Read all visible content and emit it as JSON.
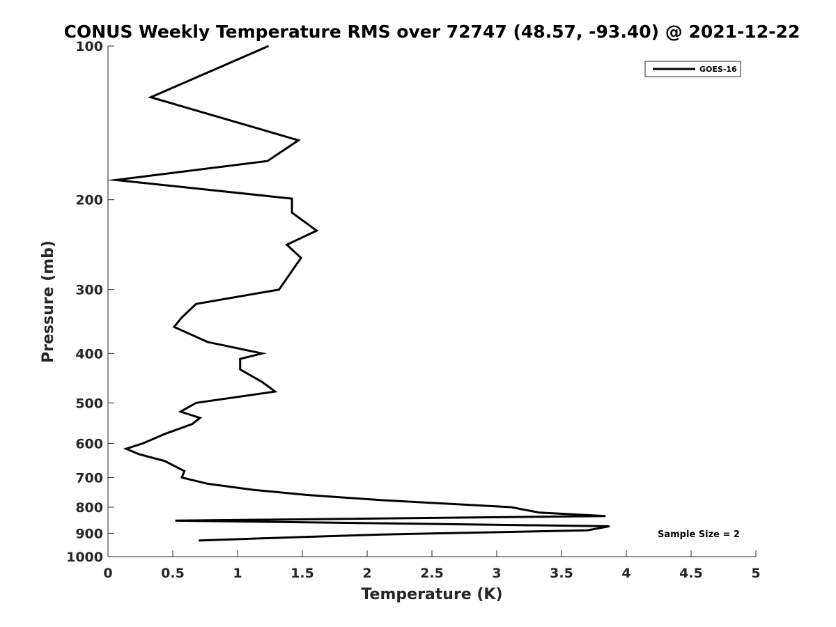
{
  "chart_data": {
    "type": "line",
    "title": "CONUS Weekly Temperature RMS over 72747 (48.57, -93.40) @ 2021-12-22",
    "xlabel": "Temperature (K)",
    "ylabel": "Pressure (mb)",
    "xlim": [
      0,
      5
    ],
    "ylim": [
      100,
      1000
    ],
    "y_scale": "log",
    "y_reversed": true,
    "x_ticks": [
      0,
      0.5,
      1,
      1.5,
      2,
      2.5,
      3,
      3.5,
      4,
      4.5,
      5
    ],
    "x_tick_labels": [
      "0",
      "0.5",
      "1",
      "1.5",
      "2",
      "2.5",
      "3",
      "3.5",
      "4",
      "4.5",
      "5"
    ],
    "y_ticks": [
      100,
      200,
      300,
      400,
      500,
      600,
      700,
      800,
      900,
      1000
    ],
    "y_tick_labels": [
      "100",
      "200",
      "300",
      "400",
      "500",
      "600",
      "700",
      "800",
      "900",
      "1000"
    ],
    "grid": false,
    "legend_position": "top-right",
    "annotation": "Sample Size = 2",
    "series": [
      {
        "name": "GOES-16",
        "color": "#000000",
        "points": [
          [
            1.24,
            100
          ],
          [
            0.33,
            126
          ],
          [
            1.47,
            153
          ],
          [
            1.23,
            168
          ],
          [
            0.06,
            183
          ],
          [
            1.42,
            199
          ],
          [
            1.42,
            212
          ],
          [
            1.61,
            230
          ],
          [
            1.38,
            245
          ],
          [
            1.49,
            260
          ],
          [
            1.32,
            300
          ],
          [
            0.68,
            320
          ],
          [
            0.57,
            340
          ],
          [
            0.51,
            355
          ],
          [
            0.77,
            380
          ],
          [
            1.19,
            400
          ],
          [
            1.02,
            410
          ],
          [
            1.02,
            430
          ],
          [
            1.19,
            455
          ],
          [
            1.29,
            475
          ],
          [
            0.68,
            500
          ],
          [
            0.56,
            520
          ],
          [
            0.71,
            535
          ],
          [
            0.65,
            550
          ],
          [
            0.44,
            575
          ],
          [
            0.27,
            600
          ],
          [
            0.14,
            615
          ],
          [
            0.24,
            630
          ],
          [
            0.44,
            650
          ],
          [
            0.59,
            680
          ],
          [
            0.57,
            700
          ],
          [
            0.77,
            720
          ],
          [
            1.12,
            740
          ],
          [
            1.53,
            757
          ],
          [
            2.11,
            775
          ],
          [
            3.11,
            800
          ],
          [
            3.33,
            820
          ],
          [
            3.84,
            833
          ],
          [
            0.52,
            850
          ],
          [
            3.87,
            872
          ],
          [
            3.7,
            888
          ],
          [
            2.12,
            905
          ],
          [
            1.51,
            915
          ],
          [
            0.7,
            930
          ]
        ]
      }
    ]
  }
}
